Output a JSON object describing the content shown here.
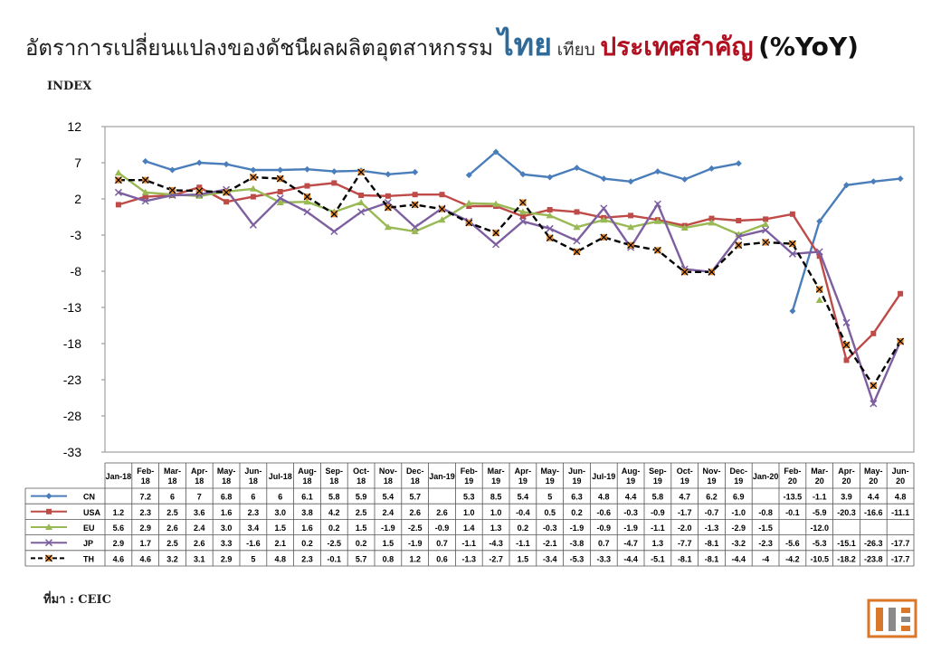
{
  "title": {
    "part1": "อัตราการเปลี่ยนแปลงของดัชนีผลผลิตอุตสาหกรรม",
    "part2": "ไทย",
    "part3": "เทียบ",
    "part4": "ประเทศสำคัญ",
    "part5": "(%YoY)"
  },
  "unit_label": "INDEX",
  "source_label": "ที่มา : CEIC",
  "colors": {
    "CN": "#4a7ebb",
    "USA": "#be4b48",
    "EU": "#98b954",
    "JP": "#7d5fa0",
    "TH": "#000000",
    "TH_marker": "#e88a2c"
  },
  "chart_data": {
    "type": "line",
    "ylim": [
      -33,
      12
    ],
    "yticks": [
      12,
      7,
      2,
      -3,
      -8,
      -13,
      -18,
      -23,
      -28,
      -33
    ],
    "categories": [
      [
        "Jan-18"
      ],
      [
        "Feb-",
        "18"
      ],
      [
        "Mar-",
        "18"
      ],
      [
        "Apr-",
        "18"
      ],
      [
        "May-",
        "18"
      ],
      [
        "Jun-",
        "18"
      ],
      [
        "Jul-18"
      ],
      [
        "Aug-",
        "18"
      ],
      [
        "Sep-",
        "18"
      ],
      [
        "Oct-",
        "18"
      ],
      [
        "Nov-",
        "18"
      ],
      [
        "Dec-",
        "18"
      ],
      [
        "Jan-19"
      ],
      [
        "Feb-",
        "19"
      ],
      [
        "Mar-",
        "19"
      ],
      [
        "Apr-",
        "19"
      ],
      [
        "May-",
        "19"
      ],
      [
        "Jun-",
        "19"
      ],
      [
        "Jul-19"
      ],
      [
        "Aug-",
        "19"
      ],
      [
        "Sep-",
        "19"
      ],
      [
        "Oct-",
        "19"
      ],
      [
        "Nov-",
        "19"
      ],
      [
        "Dec-",
        "19"
      ],
      [
        "Jan-20"
      ],
      [
        "Feb-",
        "20"
      ],
      [
        "Mar-",
        "20"
      ],
      [
        "Apr-",
        "20"
      ],
      [
        "May-",
        "20"
      ],
      [
        "Jun-",
        "20"
      ]
    ],
    "series": [
      {
        "name": "CN",
        "marker": "diamond",
        "values": [
          null,
          7.2,
          6,
          7,
          6.8,
          6,
          6,
          6.1,
          5.8,
          5.9,
          5.4,
          5.7,
          null,
          5.3,
          8.5,
          5.4,
          5,
          6.3,
          4.8,
          4.4,
          5.8,
          4.7,
          6.2,
          6.9,
          null,
          -13.5,
          -1.1,
          3.9,
          4.4,
          4.8
        ]
      },
      {
        "name": "USA",
        "marker": "square",
        "values": [
          1.2,
          2.3,
          2.5,
          3.6,
          1.6,
          2.3,
          3.0,
          3.8,
          4.2,
          2.5,
          2.4,
          2.6,
          2.6,
          1.0,
          1.0,
          -0.4,
          0.5,
          0.2,
          -0.6,
          -0.3,
          -0.9,
          -1.7,
          -0.7,
          -1.0,
          -0.8,
          -0.1,
          -5.9,
          -20.3,
          -16.6,
          -11.1
        ]
      },
      {
        "name": "EU",
        "marker": "triangle",
        "values": [
          5.6,
          2.9,
          2.6,
          2.4,
          3.0,
          3.4,
          1.5,
          1.6,
          0.2,
          1.5,
          -1.9,
          -2.5,
          -0.9,
          1.4,
          1.3,
          0.2,
          -0.3,
          -1.9,
          -0.9,
          -1.9,
          -1.1,
          -2.0,
          -1.3,
          -2.9,
          -1.5,
          null,
          -12.0,
          null,
          null,
          null
        ]
      },
      {
        "name": "JP",
        "marker": "x",
        "values": [
          2.9,
          1.7,
          2.5,
          2.6,
          3.3,
          -1.6,
          2.1,
          0.2,
          -2.5,
          0.2,
          1.5,
          -1.9,
          0.7,
          -1.1,
          -4.3,
          -1.1,
          -2.1,
          -3.8,
          0.7,
          -4.7,
          1.3,
          -7.7,
          -8.1,
          -3.2,
          -2.3,
          -5.6,
          -5.3,
          -15.1,
          -26.3,
          -17.7
        ]
      },
      {
        "name": "TH",
        "marker": "star",
        "dashed": true,
        "values": [
          4.6,
          4.6,
          3.2,
          3.1,
          2.9,
          5,
          4.8,
          2.3,
          -0.1,
          5.7,
          0.8,
          1.2,
          0.6,
          -1.3,
          -2.7,
          1.5,
          -3.4,
          -5.3,
          -3.3,
          -4.4,
          -5.1,
          -8.1,
          -8.1,
          -4.4,
          -4,
          -4.2,
          -10.5,
          -18.2,
          -23.8,
          -17.7
        ]
      }
    ],
    "table": {
      "CN": [
        "",
        "7.2",
        "6",
        "7",
        "6.8",
        "6",
        "6",
        "6.1",
        "5.8",
        "5.9",
        "5.4",
        "5.7",
        "",
        "5.3",
        "8.5",
        "5.4",
        "5",
        "6.3",
        "4.8",
        "4.4",
        "5.8",
        "4.7",
        "6.2",
        "6.9",
        "",
        "-13.5",
        "-1.1",
        "3.9",
        "4.4",
        "4.8"
      ],
      "USA": [
        "1.2",
        "2.3",
        "2.5",
        "3.6",
        "1.6",
        "2.3",
        "3.0",
        "3.8",
        "4.2",
        "2.5",
        "2.4",
        "2.6",
        "2.6",
        "1.0",
        "1.0",
        "-0.4",
        "0.5",
        "0.2",
        "-0.6",
        "-0.3",
        "-0.9",
        "-1.7",
        "-0.7",
        "-1.0",
        "-0.8",
        "-0.1",
        "-5.9",
        "-20.3",
        "-16.6",
        "-11.1"
      ],
      "EU": [
        "5.6",
        "2.9",
        "2.6",
        "2.4",
        "3.0",
        "3.4",
        "1.5",
        "1.6",
        "0.2",
        "1.5",
        "-1.9",
        "-2.5",
        "-0.9",
        "1.4",
        "1.3",
        "0.2",
        "-0.3",
        "-1.9",
        "-0.9",
        "-1.9",
        "-1.1",
        "-2.0",
        "-1.3",
        "-2.9",
        "-1.5",
        "",
        "-12.0",
        "",
        "",
        ""
      ],
      "JP": [
        "2.9",
        "1.7",
        "2.5",
        "2.6",
        "3.3",
        "-1.6",
        "2.1",
        "0.2",
        "-2.5",
        "0.2",
        "1.5",
        "-1.9",
        "0.7",
        "-1.1",
        "-4.3",
        "-1.1",
        "-2.1",
        "-3.8",
        "0.7",
        "-4.7",
        "1.3",
        "-7.7",
        "-8.1",
        "-3.2",
        "-2.3",
        "-5.6",
        "-5.3",
        "-15.1",
        "-26.3",
        "-17.7"
      ],
      "TH": [
        "4.6",
        "4.6",
        "3.2",
        "3.1",
        "2.9",
        "5",
        "4.8",
        "2.3",
        "-0.1",
        "5.7",
        "0.8",
        "1.2",
        "0.6",
        "-1.3",
        "-2.7",
        "1.5",
        "-3.4",
        "-5.3",
        "-3.3",
        "-4.4",
        "-5.1",
        "-8.1",
        "-8.1",
        "-4.4",
        "-4",
        "-4.2",
        "-10.5",
        "-18.2",
        "-23.8",
        "-17.7"
      ]
    }
  }
}
